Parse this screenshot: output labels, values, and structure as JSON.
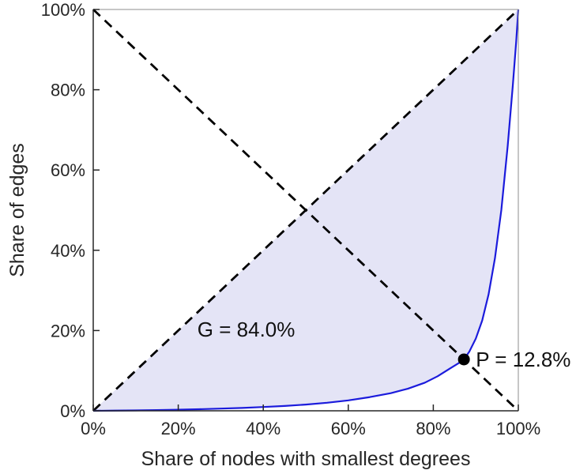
{
  "chart_data": {
    "type": "line",
    "title": "",
    "xlabel": "Share of nodes with smallest degrees",
    "ylabel": "Share of edges",
    "xlim": [
      0,
      100
    ],
    "ylim": [
      0,
      100
    ],
    "grid": false,
    "legend": "none",
    "x_tick_values": [
      0,
      20,
      40,
      60,
      80,
      100
    ],
    "x_tick_labels": [
      "0%",
      "20%",
      "40%",
      "60%",
      "80%",
      "100%"
    ],
    "y_tick_values": [
      0,
      20,
      40,
      60,
      80,
      100
    ],
    "y_tick_labels": [
      "0%",
      "20%",
      "40%",
      "60%",
      "80%",
      "100%"
    ],
    "series": [
      {
        "name": "lorenz-curve",
        "style": "solid",
        "color": "#1b1bdc",
        "x": [
          0,
          5,
          10,
          15,
          20,
          25,
          30,
          35,
          40,
          45,
          50,
          55,
          60,
          65,
          70,
          74,
          78,
          81,
          84,
          86,
          87.2,
          88.5,
          90,
          91.5,
          93,
          94.5,
          96,
          97.5,
          98.7,
          99.5,
          100
        ],
        "y": [
          0,
          0.05,
          0.1,
          0.18,
          0.28,
          0.4,
          0.55,
          0.72,
          0.95,
          1.2,
          1.55,
          2.0,
          2.6,
          3.4,
          4.4,
          5.5,
          7.0,
          8.6,
          10.6,
          11.9,
          12.8,
          14.8,
          18,
          22.5,
          29,
          38,
          50,
          66,
          81,
          92,
          100
        ]
      },
      {
        "name": "equality-diagonal",
        "style": "dashed",
        "color": "#000000",
        "x": [
          0,
          100
        ],
        "y": [
          0,
          100
        ]
      },
      {
        "name": "anti-diagonal",
        "style": "dashed",
        "color": "#000000",
        "x": [
          0,
          100
        ],
        "y": [
          100,
          0
        ]
      }
    ],
    "shaded_area": {
      "description": "region between equality diagonal and lorenz curve (Gini area)",
      "fill": "#e4e4f6"
    },
    "point": {
      "x": 87.2,
      "y": 12.8,
      "color": "#000000"
    },
    "annotations": [
      {
        "id": "gini",
        "text": "G = 84.0%",
        "x": 24.5,
        "y": 20.3
      },
      {
        "id": "p",
        "text": "P = 12.8%",
        "x": 90.0,
        "y": 12.8
      }
    ],
    "colors": {
      "axis_box": "#8c8c8c",
      "axis_main": "#262626",
      "tick_text": "#262626",
      "curve": "#1b1bdc",
      "fill": "#e4e4f6",
      "dashed": "#000000"
    }
  }
}
